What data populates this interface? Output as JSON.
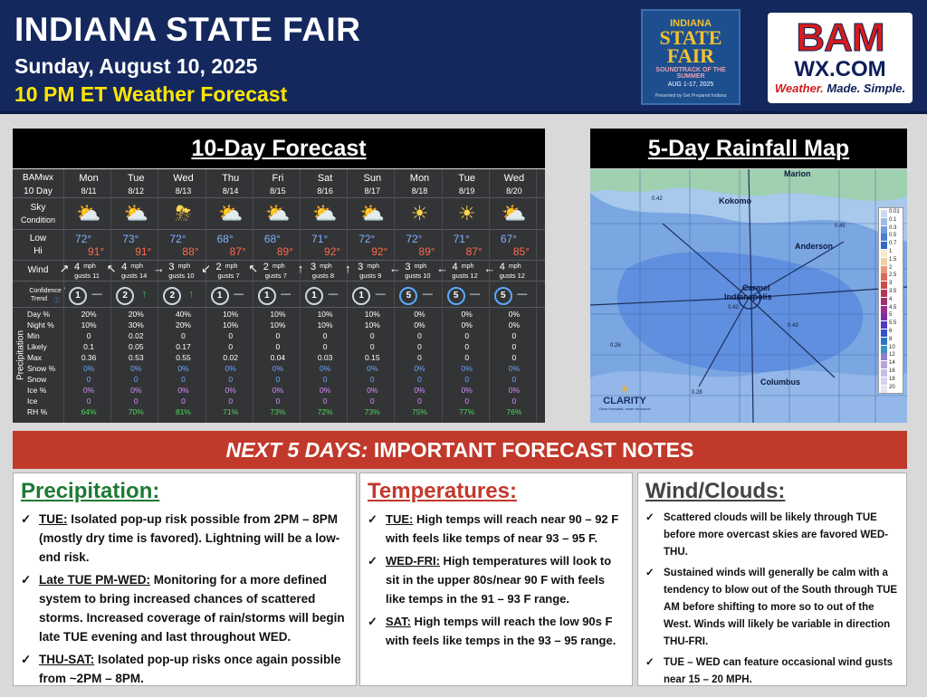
{
  "header": {
    "title": "INDIANA STATE FAIR",
    "date": "Sunday, August 10, 2025",
    "subtitle": "10 PM ET Weather Forecast",
    "fair_logo": {
      "line1": "INDIANA",
      "line2": "STATE",
      "line3": "FAIR",
      "line4": "SOUNDTRACK OF THE SUMMER",
      "line5": "AUG 1-17, 2025",
      "line6": "Presented by Get Prepared Indiana"
    },
    "bam_logo": {
      "line1": "BAM",
      "line2": "WX.COM",
      "tag1": "Weather.",
      "tag2": "Made.",
      "tag3": "Simple."
    }
  },
  "forecast": {
    "panel_title": "10-Day Forecast",
    "corner": {
      "line1": "BAMwx",
      "line2": "10 Day"
    },
    "row_labels": {
      "sky": "Sky",
      "sky2": "Condition",
      "low": "Low",
      "hi": "Hi",
      "wind": "Wind",
      "confidence": "Confidence /",
      "trend": "Trend",
      "precip_vertical": "Precipitation"
    },
    "stat_labels": [
      "Day %",
      "Night %",
      "Min",
      "Likely",
      "Max",
      "Snow %",
      "Snow",
      "Ice %",
      "Ice",
      "RH %"
    ],
    "days": [
      {
        "day": "Mon",
        "date": "8/11",
        "icon": "sun-cloud-icon",
        "low": "72°",
        "hi": "91°",
        "wind_arrow": "↗",
        "wind_speed": "4",
        "gusts": "gusts 11",
        "conf": "1",
        "trend": "—",
        "stats": [
          "20%",
          "10%",
          "0",
          "0.1",
          "0.36",
          "0%",
          "0",
          "0%",
          "0",
          "64%"
        ]
      },
      {
        "day": "Tue",
        "date": "8/12",
        "icon": "sun-cloud-icon",
        "low": "73°",
        "hi": "91°",
        "wind_arrow": "↖",
        "wind_speed": "4",
        "gusts": "gusts 14",
        "conf": "2",
        "trend": "↑",
        "stats": [
          "20%",
          "30%",
          "0.02",
          "0.05",
          "0.53",
          "0%",
          "0",
          "0%",
          "0",
          "70%"
        ]
      },
      {
        "day": "Wed",
        "date": "8/13",
        "icon": "storm-cloud-icon",
        "low": "72°",
        "hi": "88°",
        "wind_arrow": "→",
        "wind_speed": "3",
        "gusts": "gusts 10",
        "conf": "2",
        "trend": "↑",
        "stats": [
          "40%",
          "20%",
          "0",
          "0.17",
          "0.55",
          "0%",
          "0",
          "0%",
          "0",
          "81%"
        ]
      },
      {
        "day": "Thu",
        "date": "8/14",
        "icon": "sun-cloud-icon",
        "low": "68°",
        "hi": "87°",
        "wind_arrow": "↙",
        "wind_speed": "2",
        "gusts": "gusts 7",
        "conf": "1",
        "trend": "—",
        "stats": [
          "10%",
          "10%",
          "0",
          "0",
          "0.02",
          "0%",
          "0",
          "0%",
          "0",
          "71%"
        ]
      },
      {
        "day": "Fri",
        "date": "8/15",
        "icon": "sun-cloud-icon",
        "low": "68°",
        "hi": "89°",
        "wind_arrow": "↖",
        "wind_speed": "2",
        "gusts": "gusts 7",
        "conf": "1",
        "trend": "—",
        "stats": [
          "10%",
          "10%",
          "0",
          "0",
          "0.04",
          "0%",
          "0",
          "0%",
          "0",
          "73%"
        ]
      },
      {
        "day": "Sat",
        "date": "8/16",
        "icon": "sun-cloud-icon",
        "low": "71°",
        "hi": "92°",
        "wind_arrow": "↑",
        "wind_speed": "3",
        "gusts": "gusts 8",
        "conf": "1",
        "trend": "—",
        "stats": [
          "10%",
          "10%",
          "0",
          "0",
          "0.03",
          "0%",
          "0",
          "0%",
          "0",
          "72%"
        ]
      },
      {
        "day": "Sun",
        "date": "8/17",
        "icon": "sun-cloud-icon",
        "low": "72°",
        "hi": "92°",
        "wind_arrow": "↑",
        "wind_speed": "3",
        "gusts": "gusts 9",
        "conf": "1",
        "trend": "—",
        "stats": [
          "10%",
          "10%",
          "0",
          "0",
          "0.15",
          "0%",
          "0",
          "0%",
          "0",
          "73%"
        ]
      },
      {
        "day": "Mon",
        "date": "8/18",
        "icon": "sun-icon",
        "low": "72°",
        "hi": "89°",
        "wind_arrow": "←",
        "wind_speed": "3",
        "gusts": "gusts 10",
        "conf": "5",
        "trend": "—",
        "stats": [
          "0%",
          "0%",
          "0",
          "0",
          "0",
          "0%",
          "0",
          "0%",
          "0",
          "75%"
        ]
      },
      {
        "day": "Tue",
        "date": "8/19",
        "icon": "sun-icon",
        "low": "71°",
        "hi": "87°",
        "wind_arrow": "←",
        "wind_speed": "4",
        "gusts": "gusts 12",
        "conf": "5",
        "trend": "—",
        "stats": [
          "0%",
          "0%",
          "0",
          "0",
          "0",
          "0%",
          "0",
          "0%",
          "0",
          "77%"
        ]
      },
      {
        "day": "Wed",
        "date": "8/20",
        "icon": "sun-cloud-icon",
        "low": "67°",
        "hi": "85°",
        "wind_arrow": "←",
        "wind_speed": "4",
        "gusts": "gusts 12",
        "conf": "5",
        "trend": "—",
        "stats": [
          "0%",
          "0%",
          "0",
          "0",
          "0",
          "0%",
          "0",
          "0%",
          "0",
          "76%"
        ]
      }
    ],
    "mph": "mph"
  },
  "rainfall": {
    "panel_title": "5-Day Rainfall Map",
    "cities": [
      "Marion",
      "Kokomo",
      "Anderson",
      "Carmel",
      "Indianapolis",
      "Columbus"
    ],
    "values": [
      "0.42",
      "0.45",
      "0.42",
      "0.43",
      "0.26",
      "0.28"
    ],
    "legend": [
      "0.01",
      "0.1",
      "0.3",
      "0.5",
      "0.7",
      "1",
      "1.5",
      "2",
      "2.5",
      "3",
      "3.5",
      "4",
      "4.5",
      "5",
      "5.5",
      "6",
      "8",
      "10",
      "12",
      "14",
      "16",
      "18",
      "20"
    ],
    "legend_colors": [
      "#c9d9f0",
      "#9dbde8",
      "#6f9de0",
      "#4a7fd5",
      "#2f66c7",
      "#f8e9c8",
      "#f2cfa0",
      "#e89a7a",
      "#d86a5a",
      "#c84a4a",
      "#b6365a",
      "#a03070",
      "#9a2f8f",
      "#7b2da8",
      "#4e39c0",
      "#3453c8",
      "#2f73c9",
      "#3b93c8",
      "#8e7fd0",
      "#b7a2dc",
      "#c8bde6",
      "#d8d2ee",
      "#e6e3f2"
    ],
    "clarity_logo": "CLARITY",
    "clarity_tag": "Clear forecasts, smart decisions"
  },
  "notes": {
    "banner_lead": "NEXT 5 DAYS:",
    "banner_rest": " IMPORTANT FORECAST NOTES",
    "precip": {
      "title": "Precipitation:",
      "color": "#1e7a35",
      "items": [
        {
          "lead": "TUE:",
          "text": " Isolated pop-up risk possible from 2PM – 8PM (mostly dry time is favored). Lightning will be a low-end risk."
        },
        {
          "lead": "Late TUE PM-WED:",
          "text": " Monitoring for a more defined system to bring increased chances of scattered storms. Increased coverage of rain/storms will begin late TUE evening and last throughout WED."
        },
        {
          "lead": "THU-SAT:",
          "text": " Isolated pop-up risks once again possible from ~2PM – 8PM."
        }
      ]
    },
    "temps": {
      "title": "Temperatures:",
      "color": "#c1392b",
      "items": [
        {
          "lead": "TUE:",
          "text": " High temps will reach near 90 – 92 F with feels like temps of near 93 – 95 F."
        },
        {
          "lead": "WED-FRI:",
          "text": " High temperatures will look to sit in the upper 80s/near 90 F with feels like temps in the 91 – 93 F range."
        },
        {
          "lead": "SAT:",
          "text": " High temps will reach the low 90s F with feels like temps in the  93 – 95 range."
        }
      ]
    },
    "wind": {
      "title": "Wind/Clouds:",
      "color": "#444444",
      "items": [
        {
          "lead": "",
          "text": "Scattered clouds will be likely through TUE before more overcast skies are favored WED-THU."
        },
        {
          "lead": "",
          "text": "Sustained winds will generally be calm with a tendency to blow out of the South through TUE AM before shifting to more so to out of the West. Winds will likely be variable in direction THU-FRI."
        },
        {
          "lead": "",
          "text": "TUE – WED can feature occasional wind gusts near 15 – 20 MPH."
        }
      ]
    }
  }
}
